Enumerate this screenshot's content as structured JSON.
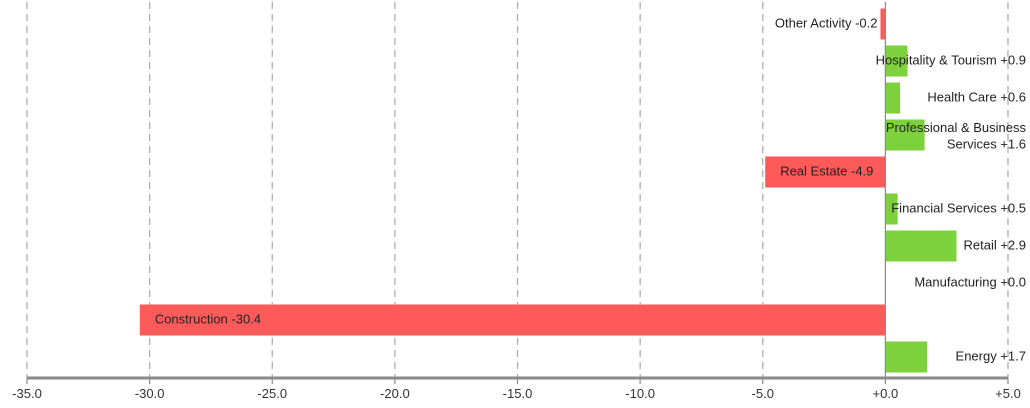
{
  "chart_data": {
    "type": "bar",
    "orientation": "horizontal",
    "xlim": [
      -35,
      5
    ],
    "ticks": [
      -35,
      -30,
      -25,
      -20,
      -15,
      -10,
      -5,
      0,
      5
    ],
    "tick_labels": [
      "-35.0",
      "-30.0",
      "-25.0",
      "-20.0",
      "-15.0",
      "-10.0",
      "-5.0",
      "+0.0",
      "+5.0"
    ],
    "grid": "vertical-dashed",
    "colors": {
      "positive": "#7dd13c",
      "negative": "#ff5a5a"
    },
    "bars": [
      {
        "label": "Other Activity -0.2",
        "value": -0.2
      },
      {
        "label": "Hospitality & Tourism +0.9",
        "value": 0.9
      },
      {
        "label": "Health Care +0.6",
        "value": 0.6
      },
      {
        "label": "Professional & Business Services +1.6",
        "label_lines": [
          "Professional & Business",
          "Services +1.6"
        ],
        "value": 1.6
      },
      {
        "label": "Real Estate -4.9",
        "value": -4.9
      },
      {
        "label": "Financial Services +0.5",
        "value": 0.5
      },
      {
        "label": "Retail +2.9",
        "value": 2.9
      },
      {
        "label": "Manufacturing +0.0",
        "value": 0.0
      },
      {
        "label": "Construction -30.4",
        "value": -30.4
      },
      {
        "label": "Energy +1.7",
        "value": 1.7
      }
    ]
  }
}
